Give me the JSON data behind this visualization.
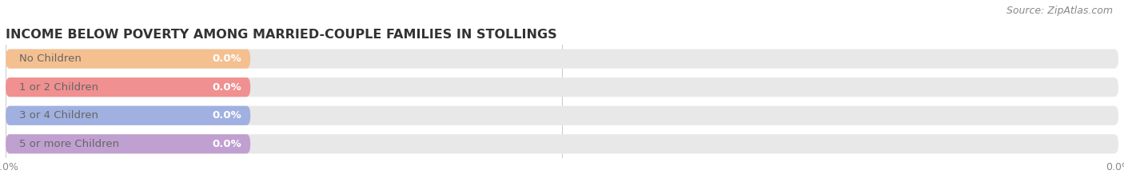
{
  "title": "INCOME BELOW POVERTY AMONG MARRIED-COUPLE FAMILIES IN STOLLINGS",
  "source": "Source: ZipAtlas.com",
  "categories": [
    "No Children",
    "1 or 2 Children",
    "3 or 4 Children",
    "5 or more Children"
  ],
  "values": [
    0.0,
    0.0,
    0.0,
    0.0
  ],
  "bar_colors": [
    "#f5c090",
    "#f09090",
    "#a0b0e0",
    "#c0a0d0"
  ],
  "label_text_color": "#666666",
  "value_text_color": "#ffffff",
  "background_color": "#ffffff",
  "bar_bg_color": "#e8e8e8",
  "title_fontsize": 11.5,
  "source_fontsize": 9,
  "tick_fontsize": 9,
  "label_fontsize": 9.5,
  "value_fontsize": 9.5,
  "bar_height": 0.68,
  "label_portion": 0.22,
  "grid_color": "#cccccc",
  "tick_color": "#888888"
}
